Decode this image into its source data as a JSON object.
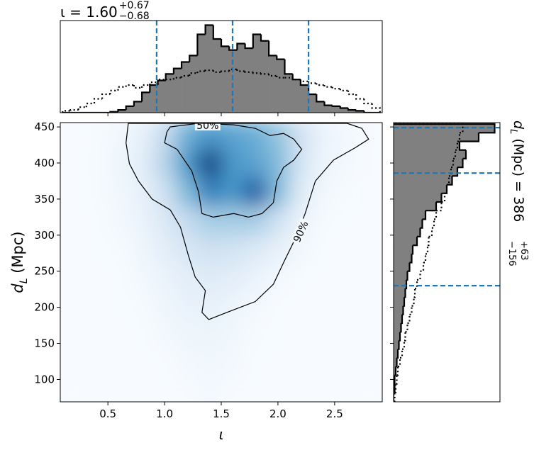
{
  "chart_data": [
    {
      "type": "heatmap",
      "x_label": "ι",
      "y_label": {
        "main": "d",
        "sub": "L",
        "rest": " (Mpc)"
      },
      "xlim": [
        0.08,
        2.92
      ],
      "ylim": [
        69,
        456
      ],
      "xticks": [
        0.5,
        {
          "value": 1.0,
          "label": "1.0"
        },
        1.5,
        {
          "value": 2.0,
          "label": "2.0"
        },
        2.5
      ],
      "yticks": [
        100,
        150,
        200,
        250,
        300,
        350,
        400,
        450
      ],
      "colormap": "Blues",
      "x_edges": [
        0.1,
        0.3,
        0.5,
        0.7,
        0.9,
        1.1,
        1.3,
        1.5,
        1.7,
        1.9,
        2.1,
        2.3,
        2.5,
        2.7,
        2.9
      ],
      "y_edges": [
        60,
        100,
        140,
        180,
        220,
        260,
        300,
        340,
        380,
        420,
        460
      ],
      "z": [
        [
          0,
          0,
          0,
          0,
          0,
          0,
          0.02,
          0,
          0,
          0,
          0,
          0,
          0,
          0
        ],
        [
          0,
          0,
          0,
          0,
          0,
          0.02,
          0.03,
          0.02,
          0,
          0,
          0,
          0,
          0,
          0
        ],
        [
          0,
          0,
          0,
          0,
          0.02,
          0.04,
          0.05,
          0.03,
          0.01,
          0,
          0,
          0,
          0,
          0
        ],
        [
          0,
          0,
          0,
          0.01,
          0.04,
          0.07,
          0.08,
          0.05,
          0.02,
          0,
          0,
          0,
          0,
          0
        ],
        [
          0,
          0,
          0,
          0.02,
          0.06,
          0.1,
          0.12,
          0.1,
          0.06,
          0.02,
          0,
          0,
          0,
          0
        ],
        [
          0,
          0,
          0.01,
          0.04,
          0.1,
          0.16,
          0.2,
          0.18,
          0.14,
          0.08,
          0.03,
          0,
          0,
          0
        ],
        [
          0,
          0,
          0.02,
          0.06,
          0.14,
          0.25,
          0.35,
          0.35,
          0.35,
          0.2,
          0.06,
          0.01,
          0,
          0
        ],
        [
          0,
          0.01,
          0.03,
          0.08,
          0.2,
          0.45,
          0.7,
          0.6,
          0.85,
          0.45,
          0.12,
          0.03,
          0.01,
          0
        ],
        [
          0,
          0.01,
          0.04,
          0.1,
          0.3,
          0.6,
          0.95,
          0.6,
          0.55,
          0.45,
          0.18,
          0.05,
          0.02,
          0
        ],
        [
          0,
          0.01,
          0.03,
          0.08,
          0.25,
          0.5,
          0.6,
          0.55,
          0.5,
          0.4,
          0.2,
          0.06,
          0.02,
          0.01
        ]
      ],
      "contours": [
        {
          "label": "50%",
          "color": "#000000",
          "x": [
            1.02,
            1.0,
            1.11,
            1.24,
            1.3,
            1.33,
            1.43,
            1.61,
            1.74,
            1.86,
            1.96,
            1.99,
            2.05,
            2.14,
            2.21,
            2.14,
            2.05,
            1.93,
            1.8,
            1.61,
            1.3,
            1.05
          ],
          "y": [
            443,
            428,
            419,
            389,
            360,
            330,
            325,
            330,
            325,
            330,
            345,
            375,
            394,
            404,
            419,
            433,
            441,
            438,
            448,
            453,
            455,
            450
          ]
        },
        {
          "label": "90%",
          "color": "#000000",
          "x": [
            0.68,
            0.66,
            0.69,
            0.77,
            0.89,
            1.05,
            1.14,
            1.21,
            1.27,
            1.36,
            1.33,
            1.39,
            1.55,
            1.8,
            1.96,
            2.05,
            2.14,
            2.24,
            2.33,
            2.49,
            2.68,
            2.8,
            2.74,
            2.61
          ],
          "y": [
            455,
            428,
            399,
            375,
            350,
            335,
            311,
            272,
            242,
            223,
            193,
            183,
            193,
            208,
            232,
            262,
            291,
            330,
            375,
            404,
            421,
            433,
            448,
            455
          ]
        }
      ]
    },
    {
      "type": "histogram",
      "orientation": "vertical",
      "title": {
        "main": "ι = 1.60",
        "upper": "+0.67",
        "lower": "−0.68"
      },
      "xlim": [
        0.08,
        2.92
      ],
      "ylim": [
        0,
        1
      ],
      "bins": [
        0.1,
        0.17,
        0.24,
        0.31,
        0.38,
        0.45,
        0.52,
        0.59,
        0.66,
        0.73,
        0.8,
        0.87,
        0.94,
        1.01,
        1.08,
        1.15,
        1.22,
        1.29,
        1.36,
        1.43,
        1.5,
        1.57,
        1.64,
        1.71,
        1.78,
        1.85,
        1.92,
        1.99,
        2.06,
        2.13,
        2.2,
        2.27,
        2.34,
        2.41,
        2.48,
        2.55,
        2.62,
        2.69,
        2.76,
        2.83,
        2.9
      ],
      "series": [
        {
          "style": "filled",
          "color": "#808080",
          "values": [
            0,
            0,
            0,
            0,
            0,
            0,
            0.01,
            0.03,
            0.07,
            0.12,
            0.22,
            0.3,
            0.35,
            0.42,
            0.48,
            0.55,
            0.62,
            0.85,
            0.95,
            0.8,
            0.72,
            0.68,
            0.75,
            0.7,
            0.85,
            0.78,
            0.62,
            0.58,
            0.42,
            0.36,
            0.3,
            0.2,
            0.12,
            0.08,
            0.07,
            0.05,
            0.03,
            0.02,
            0,
            0
          ]
        },
        {
          "style": "dotted",
          "color": "#000000",
          "values": [
            0.02,
            0.03,
            0.06,
            0.1,
            0.15,
            0.2,
            0.24,
            0.28,
            0.3,
            0.27,
            0.3,
            0.33,
            0.36,
            0.36,
            0.38,
            0.4,
            0.43,
            0.45,
            0.46,
            0.44,
            0.45,
            0.47,
            0.45,
            0.44,
            0.43,
            0.42,
            0.4,
            0.38,
            0.38,
            0.36,
            0.34,
            0.32,
            0.3,
            0.28,
            0.26,
            0.24,
            0.2,
            0.15,
            0.1,
            0.05
          ]
        }
      ],
      "quantiles": [
        0.93,
        1.6,
        2.27
      ],
      "quantile_color": "#1f77b4"
    },
    {
      "type": "histogram",
      "orientation": "horizontal",
      "label": {
        "main": "d",
        "sub": "L",
        "rest": " (Mpc) = 386",
        "upper": "+63",
        "lower": "−156"
      },
      "xlim": [
        0,
        1
      ],
      "ylim": [
        69,
        456
      ],
      "bins": [
        70,
        82,
        94,
        106,
        118,
        130,
        142,
        154,
        166,
        178,
        190,
        202,
        214,
        226,
        238,
        250,
        262,
        274,
        286,
        298,
        310,
        322,
        334,
        346,
        358,
        370,
        382,
        394,
        406,
        418,
        430,
        442,
        454
      ],
      "series": [
        {
          "style": "filled",
          "color": "#808080",
          "values": [
            0,
            0.01,
            0.01,
            0.02,
            0.03,
            0.04,
            0.05,
            0.06,
            0.07,
            0.08,
            0.09,
            0.1,
            0.11,
            0.12,
            0.13,
            0.15,
            0.17,
            0.18,
            0.22,
            0.25,
            0.27,
            0.3,
            0.4,
            0.45,
            0.5,
            0.55,
            0.6,
            0.65,
            0.68,
            0.62,
            0.8,
            0.95
          ]
        },
        {
          "style": "dotted",
          "color": "#000000",
          "values": [
            0.01,
            0.02,
            0.03,
            0.04,
            0.06,
            0.08,
            0.1,
            0.11,
            0.13,
            0.15,
            0.17,
            0.19,
            0.2,
            0.22,
            0.25,
            0.28,
            0.3,
            0.32,
            0.33,
            0.36,
            0.38,
            0.4,
            0.45,
            0.48,
            0.5,
            0.52,
            0.54,
            0.56,
            0.58,
            0.6,
            0.62,
            0.65
          ]
        }
      ],
      "quantiles": [
        230,
        386,
        449
      ],
      "quantile_color": "#1f77b4"
    }
  ]
}
